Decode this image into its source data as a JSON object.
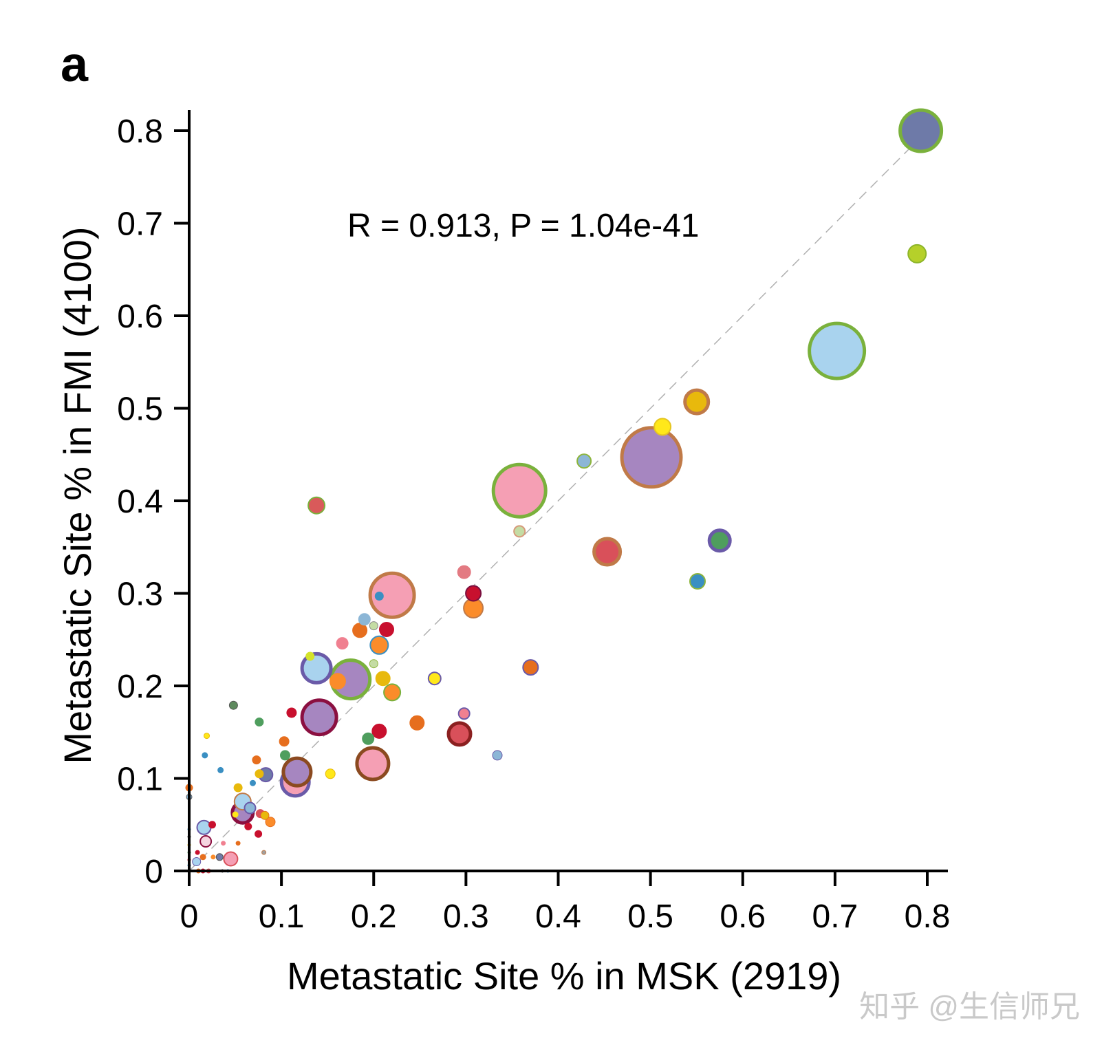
{
  "panel_label": "a",
  "watermark": "知乎 @生信师兄",
  "chart_data": {
    "type": "scatter",
    "title": "",
    "annotation": "R = 0.913, P = 1.04e-41",
    "xlabel": "Metastatic Site % in MSK (2919)",
    "ylabel": "Metastatic Site % in FMI (4100)",
    "xlim": [
      0,
      0.8
    ],
    "ylim": [
      0,
      0.8
    ],
    "xticks": [
      0,
      0.1,
      0.2,
      0.3,
      0.4,
      0.5,
      0.6,
      0.7,
      0.8
    ],
    "yticks": [
      0,
      0.1,
      0.2,
      0.3,
      0.4,
      0.5,
      0.6,
      0.7,
      0.8
    ],
    "xtick_labels": [
      "0",
      "0.1",
      "0.2",
      "0.3",
      "0.4",
      "0.5",
      "0.6",
      "0.7",
      "0.8"
    ],
    "ytick_labels": [
      "0",
      "0.1",
      "0.2",
      "0.3",
      "0.4",
      "0.5",
      "0.6",
      "0.7",
      "0.8"
    ],
    "reference_line": {
      "from": [
        0,
        0
      ],
      "to": [
        0.8,
        0.8
      ],
      "style": "dashed",
      "color": "#b0b0b0"
    },
    "grid": false,
    "points": [
      {
        "x": 0.793,
        "y": 0.8,
        "size": 30,
        "fill": "#6e7aa8",
        "stroke": "#7ab13c"
      },
      {
        "x": 0.789,
        "y": 0.667,
        "size": 13,
        "fill": "#b5d02a",
        "stroke": "#8db52a"
      },
      {
        "x": 0.702,
        "y": 0.562,
        "size": 40,
        "fill": "#a9d3ee",
        "stroke": "#7ab13c"
      },
      {
        "x": 0.55,
        "y": 0.507,
        "size": 17,
        "fill": "#e8b90c",
        "stroke": "#c07a48"
      },
      {
        "x": 0.513,
        "y": 0.48,
        "size": 12,
        "fill": "#ffe81a",
        "stroke": "#e5c520"
      },
      {
        "x": 0.501,
        "y": 0.447,
        "size": 43,
        "fill": "#a686c0",
        "stroke": "#c07a48"
      },
      {
        "x": 0.428,
        "y": 0.443,
        "size": 10,
        "fill": "#8cb6d6",
        "stroke": "#8db53c"
      },
      {
        "x": 0.358,
        "y": 0.411,
        "size": 38,
        "fill": "#f59fb4",
        "stroke": "#7ab13c"
      },
      {
        "x": 0.358,
        "y": 0.367,
        "size": 8,
        "fill": "#c4dca4",
        "stroke": "#d69a7a"
      },
      {
        "x": 0.138,
        "y": 0.395,
        "size": 12,
        "fill": "#d95a5a",
        "stroke": "#7ab13c"
      },
      {
        "x": 0.453,
        "y": 0.345,
        "size": 19,
        "fill": "#d9505a",
        "stroke": "#c07a48"
      },
      {
        "x": 0.575,
        "y": 0.357,
        "size": 15,
        "fill": "#4f9e5e",
        "stroke": "#6a5aa8"
      },
      {
        "x": 0.551,
        "y": 0.313,
        "size": 11,
        "fill": "#3a8fc2",
        "stroke": "#8db53c"
      },
      {
        "x": 0.298,
        "y": 0.323,
        "size": 9,
        "fill": "#e37a82",
        "stroke": "#e37a82"
      },
      {
        "x": 0.308,
        "y": 0.3,
        "size": 11,
        "fill": "#c8102e",
        "stroke": "#7a1040"
      },
      {
        "x": 0.308,
        "y": 0.284,
        "size": 14,
        "fill": "#fb8c2a",
        "stroke": "#c07a48"
      },
      {
        "x": 0.22,
        "y": 0.298,
        "size": 32,
        "fill": "#f59fb4",
        "stroke": "#c07a48"
      },
      {
        "x": 0.206,
        "y": 0.297,
        "size": 6,
        "fill": "#3a8fc2",
        "stroke": "#3a8fc2"
      },
      {
        "x": 0.19,
        "y": 0.272,
        "size": 8,
        "fill": "#8cb6d6",
        "stroke": "#8cb6d6"
      },
      {
        "x": 0.2,
        "y": 0.265,
        "size": 6,
        "fill": "#c4dca4",
        "stroke": "#888888"
      },
      {
        "x": 0.185,
        "y": 0.26,
        "size": 10,
        "fill": "#e66e1e",
        "stroke": "#e66e1e"
      },
      {
        "x": 0.214,
        "y": 0.261,
        "size": 10,
        "fill": "#c8102e",
        "stroke": "#c8102e"
      },
      {
        "x": 0.166,
        "y": 0.246,
        "size": 8,
        "fill": "#f08090",
        "stroke": "#f08090"
      },
      {
        "x": 0.206,
        "y": 0.244,
        "size": 13,
        "fill": "#fb8c2a",
        "stroke": "#3a8fc2"
      },
      {
        "x": 0.2,
        "y": 0.224,
        "size": 6,
        "fill": "#c4dca4",
        "stroke": "#8db53c"
      },
      {
        "x": 0.138,
        "y": 0.219,
        "size": 21,
        "fill": "#a9d3ee",
        "stroke": "#6a5aa8"
      },
      {
        "x": 0.131,
        "y": 0.232,
        "size": 6,
        "fill": "#d4e32a",
        "stroke": "#d4e32a"
      },
      {
        "x": 0.175,
        "y": 0.207,
        "size": 28,
        "fill": "#a686c0",
        "stroke": "#7ab13c"
      },
      {
        "x": 0.161,
        "y": 0.205,
        "size": 11,
        "fill": "#fb8c2a",
        "stroke": "#fb8c2a"
      },
      {
        "x": 0.21,
        "y": 0.208,
        "size": 10,
        "fill": "#e8b90c",
        "stroke": "#e8b90c"
      },
      {
        "x": 0.22,
        "y": 0.193,
        "size": 12,
        "fill": "#fb8c2a",
        "stroke": "#7ab13c"
      },
      {
        "x": 0.266,
        "y": 0.208,
        "size": 9,
        "fill": "#ffe81a",
        "stroke": "#6a5aa8"
      },
      {
        "x": 0.37,
        "y": 0.22,
        "size": 11,
        "fill": "#e66e1e",
        "stroke": "#6a5aa8"
      },
      {
        "x": 0.048,
        "y": 0.179,
        "size": 6,
        "fill": "#5e8a5e",
        "stroke": "#555555"
      },
      {
        "x": 0.111,
        "y": 0.171,
        "size": 7,
        "fill": "#c8102e",
        "stroke": "#c8102e"
      },
      {
        "x": 0.076,
        "y": 0.161,
        "size": 6,
        "fill": "#4f9e5e",
        "stroke": "#4f9e5e"
      },
      {
        "x": 0.141,
        "y": 0.166,
        "size": 25,
        "fill": "#a686c0",
        "stroke": "#8b0f40"
      },
      {
        "x": 0.247,
        "y": 0.16,
        "size": 10,
        "fill": "#e66e1e",
        "stroke": "#e66e1e"
      },
      {
        "x": 0.298,
        "y": 0.17,
        "size": 8,
        "fill": "#f08090",
        "stroke": "#6a5aa8"
      },
      {
        "x": 0.206,
        "y": 0.151,
        "size": 10,
        "fill": "#c8102e",
        "stroke": "#c8102e"
      },
      {
        "x": 0.194,
        "y": 0.143,
        "size": 8,
        "fill": "#4f9e5e",
        "stroke": "#4f9e5e"
      },
      {
        "x": 0.293,
        "y": 0.148,
        "size": 16,
        "fill": "#d9505a",
        "stroke": "#8b2020"
      },
      {
        "x": 0.019,
        "y": 0.146,
        "size": 4,
        "fill": "#ffe81a",
        "stroke": "#e8b90c"
      },
      {
        "x": 0.103,
        "y": 0.14,
        "size": 7,
        "fill": "#e66e1e",
        "stroke": "#e66e1e"
      },
      {
        "x": 0.017,
        "y": 0.125,
        "size": 4,
        "fill": "#3a8fc2",
        "stroke": "#3a8fc2"
      },
      {
        "x": 0.104,
        "y": 0.125,
        "size": 7,
        "fill": "#4f9e5e",
        "stroke": "#4f9e5e"
      },
      {
        "x": 0.334,
        "y": 0.125,
        "size": 7,
        "fill": "#8cb6d6",
        "stroke": "#6a5aa8"
      },
      {
        "x": 0.073,
        "y": 0.12,
        "size": 6,
        "fill": "#e66e1e",
        "stroke": "#e66e1e"
      },
      {
        "x": 0.199,
        "y": 0.116,
        "size": 23,
        "fill": "#f59fb4",
        "stroke": "#8b4a20"
      },
      {
        "x": 0.034,
        "y": 0.109,
        "size": 4,
        "fill": "#3a8fc2",
        "stroke": "#3a8fc2"
      },
      {
        "x": 0.083,
        "y": 0.104,
        "size": 10,
        "fill": "#6e7aa8",
        "stroke": "#6a5aa8"
      },
      {
        "x": 0.076,
        "y": 0.105,
        "size": 6,
        "fill": "#e8b90c",
        "stroke": "#e8b90c"
      },
      {
        "x": 0.153,
        "y": 0.105,
        "size": 7,
        "fill": "#ffe81a",
        "stroke": "#e8b90c"
      },
      {
        "x": 0.115,
        "y": 0.096,
        "size": 20,
        "fill": "#f59fb4",
        "stroke": "#6a5aa8"
      },
      {
        "x": 0.117,
        "y": 0.107,
        "size": 20,
        "fill": "#a686c0",
        "stroke": "#8b4a20"
      },
      {
        "x": 0.069,
        "y": 0.095,
        "size": 4,
        "fill": "#3a8fc2",
        "stroke": "#3a8fc2"
      },
      {
        "x": 0.053,
        "y": 0.09,
        "size": 6,
        "fill": "#e8b90c",
        "stroke": "#e8b90c"
      },
      {
        "x": 0.0,
        "y": 0.09,
        "size": 5,
        "fill": "#e66e1e",
        "stroke": "#e66e1e"
      },
      {
        "x": 0.0,
        "y": 0.08,
        "size": 4,
        "fill": "#8cb6d6",
        "stroke": "#555555"
      },
      {
        "x": 0.058,
        "y": 0.075,
        "size": 12,
        "fill": "#a9d3ee",
        "stroke": "#c07a48"
      },
      {
        "x": 0.058,
        "y": 0.063,
        "size": 15,
        "fill": "#a686c0",
        "stroke": "#8b0f40"
      },
      {
        "x": 0.066,
        "y": 0.068,
        "size": 8,
        "fill": "#8cb6d6",
        "stroke": "#6a5aa8"
      },
      {
        "x": 0.064,
        "y": 0.048,
        "size": 5,
        "fill": "#c8102e",
        "stroke": "#c8102e"
      },
      {
        "x": 0.077,
        "y": 0.062,
        "size": 6,
        "fill": "#d9505a",
        "stroke": "#d9505a"
      },
      {
        "x": 0.082,
        "y": 0.06,
        "size": 6,
        "fill": "#e8b90c",
        "stroke": "#e66e1e"
      },
      {
        "x": 0.088,
        "y": 0.053,
        "size": 7,
        "fill": "#fb8c2a",
        "stroke": "#e66e1e"
      },
      {
        "x": 0.05,
        "y": 0.061,
        "size": 4,
        "fill": "#ffe81a",
        "stroke": "#ffe81a"
      },
      {
        "x": 0.075,
        "y": 0.04,
        "size": 5,
        "fill": "#c8102e",
        "stroke": "#c8102e"
      },
      {
        "x": 0.016,
        "y": 0.047,
        "size": 10,
        "fill": "#a9d3ee",
        "stroke": "#6a5aa8"
      },
      {
        "x": 0.025,
        "y": 0.05,
        "size": 5,
        "fill": "#c8102e",
        "stroke": "#c8102e"
      },
      {
        "x": 0.018,
        "y": 0.032,
        "size": 8,
        "fill": "#f5d5e0",
        "stroke": "#8b0f40"
      },
      {
        "x": 0.053,
        "y": 0.03,
        "size": 3,
        "fill": "#e66e1e",
        "stroke": "#e66e1e"
      },
      {
        "x": 0.037,
        "y": 0.03,
        "size": 3,
        "fill": "#f08090",
        "stroke": "#f08090"
      },
      {
        "x": 0.081,
        "y": 0.02,
        "size": 3,
        "fill": "#a0a0a0",
        "stroke": "#c07a48"
      },
      {
        "x": 0.045,
        "y": 0.013,
        "size": 10,
        "fill": "#f59fb4",
        "stroke": "#d9505a"
      },
      {
        "x": 0.033,
        "y": 0.015,
        "size": 5,
        "fill": "#6e7aa8",
        "stroke": "#555555"
      },
      {
        "x": 0.026,
        "y": 0.015,
        "size": 3,
        "fill": "#fb8c2a",
        "stroke": "#fb8c2a"
      },
      {
        "x": 0.015,
        "y": 0.015,
        "size": 4,
        "fill": "#e66e1e",
        "stroke": "#e66e1e"
      },
      {
        "x": 0.008,
        "y": 0.01,
        "size": 6,
        "fill": "#a9d3ee",
        "stroke": "#6a5aa8"
      },
      {
        "x": 0.009,
        "y": 0.02,
        "size": 3,
        "fill": "#c8102e",
        "stroke": "#c8102e"
      },
      {
        "x": 0.0,
        "y": 0.045,
        "size": 2,
        "fill": "#3a8fc2",
        "stroke": "#3a8fc2"
      },
      {
        "x": 0.0,
        "y": 0.037,
        "size": 2,
        "fill": "#555555",
        "stroke": "#555555"
      },
      {
        "x": 0.0,
        "y": 0.028,
        "size": 2,
        "fill": "#e8b90c",
        "stroke": "#e8b90c"
      },
      {
        "x": 0.0,
        "y": 0.02,
        "size": 2,
        "fill": "#4f9e5e",
        "stroke": "#4f9e5e"
      },
      {
        "x": 0.0,
        "y": 0.012,
        "size": 2,
        "fill": "#c8102e",
        "stroke": "#c8102e"
      },
      {
        "x": 0.0,
        "y": 0.006,
        "size": 2,
        "fill": "#3a8fc2",
        "stroke": "#3a8fc2"
      },
      {
        "x": 0.01,
        "y": 0.0,
        "size": 3,
        "fill": "#e66e1e",
        "stroke": "#e66e1e"
      },
      {
        "x": 0.015,
        "y": 0.0,
        "size": 3,
        "fill": "#c8102e",
        "stroke": "#c8102e"
      },
      {
        "x": 0.021,
        "y": 0.0,
        "size": 3,
        "fill": "#d9505a",
        "stroke": "#d9505a"
      },
      {
        "x": 0.036,
        "y": 0.0,
        "size": 2,
        "fill": "#555555",
        "stroke": "#555555"
      },
      {
        "x": 0.042,
        "y": 0.0,
        "size": 2,
        "fill": "#3a8fc2",
        "stroke": "#3a8fc2"
      }
    ]
  }
}
